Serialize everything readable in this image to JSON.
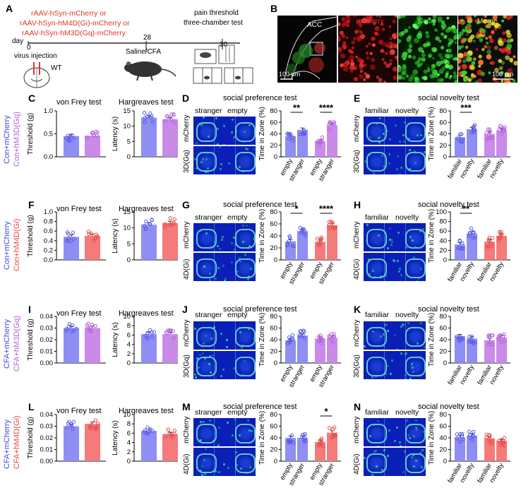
{
  "panels": {
    "A": "A",
    "B": "B",
    "C": "C",
    "D": "D",
    "E": "E",
    "F": "F",
    "G": "G",
    "H": "H",
    "I": "I",
    "J": "J",
    "K": "K",
    "L": "L",
    "M": "M",
    "N": "N"
  },
  "panelA": {
    "virus1": "rAAV-hSyn-mCherry or",
    "virus2": "rAAV-hSyn-hM4D(Gi)-mCherry or",
    "virus3": "rAAV-hSyn-hM3D(Gq)-mCherry",
    "day": "day",
    "d0": "0",
    "d28": "28",
    "d30": "30",
    "injection": "virus injection",
    "wt": "WT",
    "saline": "Saline/CFA",
    "pain1": "pain threshold",
    "pain2": "three-chamber test"
  },
  "panelB": {
    "acc": "ACC",
    "mcherry": "mCherry",
    "neun": "Neun",
    "merge": "Merge",
    "scale1": "100 μm",
    "scale2": "100 μm"
  },
  "groups": {
    "row1a": "Con+mCherry",
    "row1b": "Con+hM3D(Gq)",
    "row2a": "Con+mCherry",
    "row2b": "Con+hM4D(Gi)",
    "row3a": "CFA+mCherry",
    "row3b": "CFA+hM3D(Gq)",
    "row4a": "CFA+mCherry",
    "row4b": "CFA+hM4D(Gi)"
  },
  "titles": {
    "vonfrey": "von Frey test",
    "hargreaves": "Hargreaves test",
    "socialpref": "social preference test",
    "socialnov": "social novelty test"
  },
  "heatLabels": {
    "stranger": "stranger",
    "empty": "empty",
    "familiar": "familiar",
    "novelty": "novelty",
    "mcherry": "mCherry",
    "gq": "3D(Gq)",
    "gi": "4D(Gi)"
  },
  "axis": {
    "threshold": "Threshold (g)",
    "latency": "Latency (s)",
    "zone": "Time in Zone (%)"
  },
  "catLabels": {
    "empty": "empty",
    "stranger": "stranger",
    "familiar": "familiar",
    "novelty": "novelty"
  },
  "colors": {
    "blue": "#8e8ef5",
    "purple": "#c98ae8",
    "red": "#f57a7a",
    "blueDot": "#5b5bea",
    "purpleDot": "#b460e0",
    "redDot": "#e84a4a"
  },
  "chart_data": [
    {
      "id": "C1",
      "type": "bar",
      "ylabel": "Threshold (g)",
      "ylim": [
        0,
        1.0
      ],
      "ticks": [
        "0.0",
        "0.5",
        "1.0"
      ],
      "values": [
        0.45,
        0.46
      ],
      "colors": [
        "blue",
        "purple"
      ]
    },
    {
      "id": "C2",
      "type": "bar",
      "ylabel": "Latency (s)",
      "ylim": [
        0,
        15
      ],
      "ticks": [
        "0",
        "5",
        "10",
        "15"
      ],
      "values": [
        12.8,
        12.3
      ],
      "colors": [
        "blue",
        "purple"
      ]
    },
    {
      "id": "D",
      "type": "bar",
      "ylabel": "Time in Zone (%)",
      "ylim": [
        0,
        80
      ],
      "ticks": [
        "0",
        "20",
        "40",
        "60",
        "80"
      ],
      "categories": [
        "empty",
        "stranger",
        "empty",
        "stranger"
      ],
      "values": [
        36,
        47,
        27,
        55
      ],
      "colors": [
        "blue",
        "blue",
        "purple",
        "purple"
      ],
      "sig": [
        {
          "label": "**",
          "from": 0,
          "to": 1
        },
        {
          "label": "****",
          "from": 2,
          "to": 3
        }
      ]
    },
    {
      "id": "E",
      "type": "bar",
      "ylabel": "Time in Zone (%)",
      "ylim": [
        0,
        80
      ],
      "ticks": [
        "0",
        "20",
        "40",
        "60",
        "80"
      ],
      "categories": [
        "familiar",
        "novelty",
        "familiar",
        "novelty"
      ],
      "values": [
        34,
        48,
        40,
        46
      ],
      "colors": [
        "blue",
        "blue",
        "purple",
        "purple"
      ],
      "sig": [
        {
          "label": "***",
          "from": 0,
          "to": 1
        }
      ]
    },
    {
      "id": "F1",
      "type": "bar",
      "ylabel": "Threshold (g)",
      "ylim": [
        0,
        1.0
      ],
      "ticks": [
        "0.0",
        "0.2",
        "0.4",
        "0.6",
        "0.8",
        "1.0"
      ],
      "values": [
        0.48,
        0.5
      ],
      "colors": [
        "blue",
        "red"
      ]
    },
    {
      "id": "F2",
      "type": "bar",
      "ylabel": "Latency (s)",
      "ylim": [
        0,
        15
      ],
      "ticks": [
        "0",
        "5",
        "10",
        "15"
      ],
      "values": [
        11.0,
        11.5
      ],
      "colors": [
        "blue",
        "red"
      ]
    },
    {
      "id": "G",
      "type": "bar",
      "ylabel": "Time in Zone (%)",
      "ylim": [
        0,
        80
      ],
      "ticks": [
        "0",
        "20",
        "40",
        "60",
        "80"
      ],
      "categories": [
        "empty",
        "stranger",
        "empty",
        "stranger"
      ],
      "values": [
        31,
        48,
        30,
        58
      ],
      "colors": [
        "blue",
        "blue",
        "red",
        "red"
      ],
      "sig": [
        {
          "label": "*",
          "from": 0,
          "to": 1
        },
        {
          "label": "****",
          "from": 2,
          "to": 3
        }
      ]
    },
    {
      "id": "H",
      "type": "bar",
      "ylabel": "Time in Zone (%)",
      "ylim": [
        0,
        100
      ],
      "ticks": [
        "0",
        "20",
        "40",
        "60",
        "80",
        "100"
      ],
      "categories": [
        "familiar",
        "novelty",
        "familiar",
        "novelty"
      ],
      "values": [
        32,
        55,
        38,
        50
      ],
      "colors": [
        "blue",
        "blue",
        "red",
        "red"
      ],
      "sig": [
        {
          "label": "**",
          "from": 0,
          "to": 1
        }
      ]
    },
    {
      "id": "I1",
      "type": "bar",
      "ylabel": "Threshold (g)",
      "ylim": [
        0,
        0.04
      ],
      "ticks": [
        "0.00",
        "0.01",
        "0.02",
        "0.03",
        "0.04"
      ],
      "values": [
        0.03,
        0.03
      ],
      "colors": [
        "blue",
        "purple"
      ]
    },
    {
      "id": "I2",
      "type": "bar",
      "ylabel": "Latency (s)",
      "ylim": [
        0,
        10
      ],
      "ticks": [
        "0",
        "2",
        "4",
        "6",
        "8",
        "10"
      ],
      "values": [
        6.2,
        6.2
      ],
      "colors": [
        "blue",
        "purple"
      ]
    },
    {
      "id": "J",
      "type": "bar",
      "ylabel": "Time in Zone (%)",
      "ylim": [
        0,
        80
      ],
      "ticks": [
        "0",
        "20",
        "40",
        "60",
        "80"
      ],
      "categories": [
        "empty",
        "stranger",
        "empty",
        "stranger"
      ],
      "values": [
        39,
        47,
        42,
        43
      ],
      "colors": [
        "blue",
        "blue",
        "purple",
        "purple"
      ],
      "sig": []
    },
    {
      "id": "K",
      "type": "bar",
      "ylabel": "Time in Zone (%)",
      "ylim": [
        0,
        80
      ],
      "ticks": [
        "0",
        "20",
        "40",
        "60",
        "80"
      ],
      "categories": [
        "familiar",
        "novelty",
        "familiar",
        "novelty"
      ],
      "values": [
        46,
        42,
        39,
        44
      ],
      "colors": [
        "blue",
        "blue",
        "purple",
        "purple"
      ],
      "sig": []
    },
    {
      "id": "L1",
      "type": "bar",
      "ylabel": "Threshold (g)",
      "ylim": [
        0,
        0.04
      ],
      "ticks": [
        "0.00",
        "0.01",
        "0.02",
        "0.03",
        "0.04"
      ],
      "values": [
        0.03,
        0.032
      ],
      "colors": [
        "blue",
        "red"
      ]
    },
    {
      "id": "L2",
      "type": "bar",
      "ylabel": "Latency (s)",
      "ylim": [
        0,
        10
      ],
      "ticks": [
        "0",
        "2",
        "4",
        "6",
        "8",
        "10"
      ],
      "values": [
        6.5,
        5.8
      ],
      "colors": [
        "blue",
        "red"
      ]
    },
    {
      "id": "M",
      "type": "bar",
      "ylabel": "Time in Zone (%)",
      "ylim": [
        0,
        80
      ],
      "ticks": [
        "0",
        "20",
        "40",
        "60",
        "80"
      ],
      "categories": [
        "empty",
        "stranger",
        "empty",
        "stranger"
      ],
      "values": [
        40,
        40,
        33,
        49
      ],
      "colors": [
        "blue",
        "blue",
        "red",
        "red"
      ],
      "sig": [
        {
          "label": "*",
          "from": 2,
          "to": 3
        }
      ]
    },
    {
      "id": "N",
      "type": "bar",
      "ylabel": "Time in Zone (%)",
      "ylim": [
        0,
        80
      ],
      "ticks": [
        "0",
        "20",
        "40",
        "60",
        "80"
      ],
      "categories": [
        "familiar",
        "novelty",
        "familiar",
        "novelty"
      ],
      "values": [
        41,
        44,
        39,
        35
      ],
      "colors": [
        "blue",
        "blue",
        "red",
        "red"
      ],
      "sig": []
    }
  ]
}
